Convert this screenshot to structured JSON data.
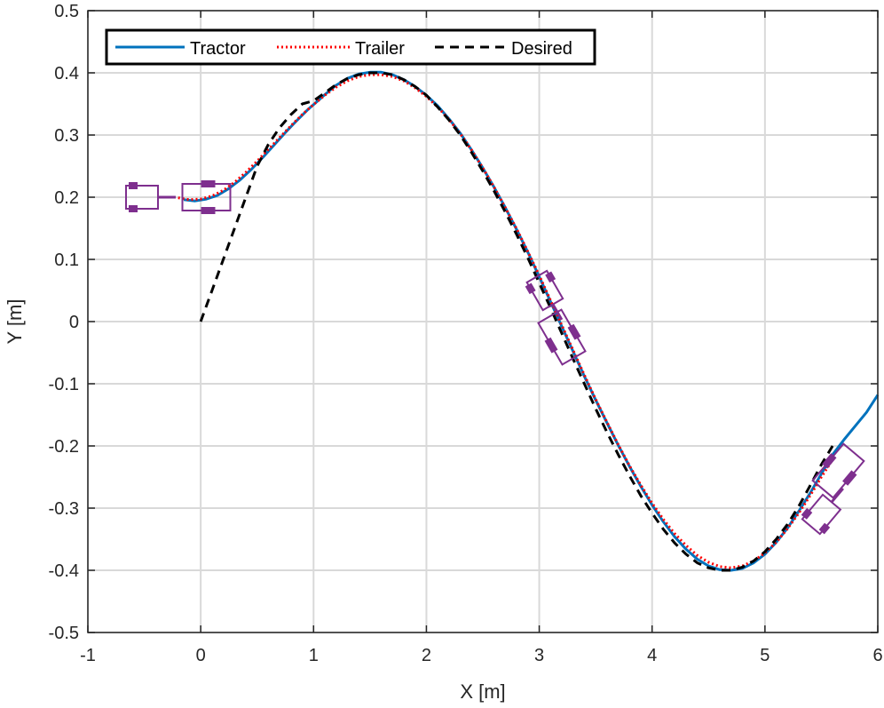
{
  "chart_data": {
    "type": "line",
    "title": "",
    "xlabel": "X [m]",
    "ylabel": "Y [m]",
    "xlim": [
      -1,
      6
    ],
    "ylim": [
      -0.5,
      0.5
    ],
    "xticks": [
      "-1",
      "0",
      "1",
      "2",
      "3",
      "4",
      "5",
      "6"
    ],
    "yticks": [
      "-0.5",
      "-0.4",
      "-0.3",
      "-0.2",
      "-0.1",
      "0",
      "0.1",
      "0.2",
      "0.3",
      "0.4",
      "0.5"
    ],
    "grid": true,
    "legend_position": "top-left",
    "colors": {
      "tractor": "#0072BD",
      "trailer": "#FF0000",
      "desired": "#000000",
      "vehicle": "#7E2F8E",
      "grid": "#d9d9d9"
    },
    "series": [
      {
        "name": "Tractor",
        "style": "solid",
        "points": [
          [
            -0.15,
            0.196
          ],
          [
            -0.05,
            0.194
          ],
          [
            0.05,
            0.197
          ],
          [
            0.15,
            0.203
          ],
          [
            0.25,
            0.214
          ],
          [
            0.35,
            0.228
          ],
          [
            0.45,
            0.245
          ],
          [
            0.55,
            0.264
          ],
          [
            0.65,
            0.284
          ],
          [
            0.75,
            0.304
          ],
          [
            0.85,
            0.323
          ],
          [
            0.95,
            0.341
          ],
          [
            1.0,
            0.349
          ],
          [
            1.1,
            0.365
          ],
          [
            1.2,
            0.38
          ],
          [
            1.3,
            0.391
          ],
          [
            1.4,
            0.398
          ],
          [
            1.5,
            0.401
          ],
          [
            1.6,
            0.401
          ],
          [
            1.7,
            0.397
          ],
          [
            1.8,
            0.389
          ],
          [
            1.9,
            0.378
          ],
          [
            2.0,
            0.364
          ],
          [
            2.1,
            0.347
          ],
          [
            2.2,
            0.326
          ],
          [
            2.3,
            0.303
          ],
          [
            2.4,
            0.276
          ],
          [
            2.5,
            0.247
          ],
          [
            2.6,
            0.216
          ],
          [
            2.7,
            0.183
          ],
          [
            2.8,
            0.148
          ],
          [
            2.9,
            0.111
          ],
          [
            3.0,
            0.072
          ],
          [
            3.1,
            0.032
          ],
          [
            3.2,
            -0.008
          ],
          [
            3.3,
            -0.048
          ],
          [
            3.4,
            -0.088
          ],
          [
            3.5,
            -0.126
          ],
          [
            3.6,
            -0.163
          ],
          [
            3.7,
            -0.199
          ],
          [
            3.8,
            -0.233
          ],
          [
            3.9,
            -0.265
          ],
          [
            4.0,
            -0.295
          ],
          [
            4.1,
            -0.322
          ],
          [
            4.2,
            -0.346
          ],
          [
            4.3,
            -0.366
          ],
          [
            4.4,
            -0.382
          ],
          [
            4.5,
            -0.393
          ],
          [
            4.6,
            -0.399
          ],
          [
            4.7,
            -0.4
          ],
          [
            4.8,
            -0.397
          ],
          [
            4.9,
            -0.388
          ],
          [
            5.0,
            -0.374
          ],
          [
            5.1,
            -0.355
          ],
          [
            5.2,
            -0.332
          ],
          [
            5.3,
            -0.305
          ],
          [
            5.4,
            -0.276
          ],
          [
            5.5,
            -0.245
          ],
          [
            5.6,
            -0.214
          ],
          [
            5.7,
            -0.19
          ],
          [
            5.8,
            -0.168
          ],
          [
            5.9,
            -0.146
          ],
          [
            6.0,
            -0.118
          ]
        ]
      },
      {
        "name": "Trailer",
        "style": "dotted",
        "points": [
          [
            -0.2,
            0.199
          ],
          [
            -0.1,
            0.196
          ],
          [
            0.0,
            0.197
          ],
          [
            0.1,
            0.202
          ],
          [
            0.2,
            0.211
          ],
          [
            0.3,
            0.224
          ],
          [
            0.4,
            0.24
          ],
          [
            0.5,
            0.258
          ],
          [
            0.6,
            0.277
          ],
          [
            0.7,
            0.296
          ],
          [
            0.8,
            0.315
          ],
          [
            0.9,
            0.333
          ],
          [
            1.0,
            0.349
          ],
          [
            1.1,
            0.364
          ],
          [
            1.2,
            0.377
          ],
          [
            1.3,
            0.387
          ],
          [
            1.4,
            0.394
          ],
          [
            1.5,
            0.397
          ],
          [
            1.6,
            0.397
          ],
          [
            1.7,
            0.394
          ],
          [
            1.8,
            0.387
          ],
          [
            1.9,
            0.376
          ],
          [
            2.0,
            0.362
          ],
          [
            2.1,
            0.345
          ],
          [
            2.2,
            0.325
          ],
          [
            2.3,
            0.302
          ],
          [
            2.4,
            0.276
          ],
          [
            2.5,
            0.247
          ],
          [
            2.6,
            0.216
          ],
          [
            2.7,
            0.183
          ],
          [
            2.8,
            0.149
          ],
          [
            2.9,
            0.112
          ],
          [
            3.0,
            0.074
          ],
          [
            3.1,
            0.034
          ],
          [
            3.2,
            -0.006
          ],
          [
            3.3,
            -0.046
          ],
          [
            3.4,
            -0.086
          ],
          [
            3.5,
            -0.125
          ],
          [
            3.6,
            -0.162
          ],
          [
            3.7,
            -0.198
          ],
          [
            3.8,
            -0.232
          ],
          [
            3.9,
            -0.263
          ],
          [
            4.0,
            -0.292
          ],
          [
            4.1,
            -0.318
          ],
          [
            4.2,
            -0.341
          ],
          [
            4.3,
            -0.36
          ],
          [
            4.4,
            -0.376
          ],
          [
            4.5,
            -0.387
          ],
          [
            4.6,
            -0.394
          ],
          [
            4.7,
            -0.396
          ],
          [
            4.8,
            -0.393
          ],
          [
            4.9,
            -0.385
          ],
          [
            5.0,
            -0.372
          ],
          [
            5.1,
            -0.355
          ],
          [
            5.2,
            -0.333
          ],
          [
            5.3,
            -0.308
          ],
          [
            5.4,
            -0.28
          ],
          [
            5.5,
            -0.25
          ],
          [
            5.6,
            -0.222
          ]
        ]
      },
      {
        "name": "Desired",
        "style": "dashed",
        "points": [
          [
            0.0,
            0.0
          ],
          [
            0.1,
            0.05
          ],
          [
            0.2,
            0.1
          ],
          [
            0.3,
            0.15
          ],
          [
            0.4,
            0.2
          ],
          [
            0.5,
            0.25
          ],
          [
            0.6,
            0.285
          ],
          [
            0.7,
            0.312
          ],
          [
            0.8,
            0.333
          ],
          [
            0.9,
            0.35
          ],
          [
            1.0,
            0.355
          ],
          [
            1.1,
            0.368
          ],
          [
            1.2,
            0.381
          ],
          [
            1.3,
            0.391
          ],
          [
            1.4,
            0.397
          ],
          [
            1.5,
            0.4
          ],
          [
            1.6,
            0.4
          ],
          [
            1.7,
            0.397
          ],
          [
            1.8,
            0.389
          ],
          [
            1.9,
            0.378
          ],
          [
            2.0,
            0.364
          ],
          [
            2.1,
            0.345
          ],
          [
            2.2,
            0.324
          ],
          [
            2.3,
            0.3
          ],
          [
            2.4,
            0.272
          ],
          [
            2.5,
            0.242
          ],
          [
            2.6,
            0.21
          ],
          [
            2.7,
            0.176
          ],
          [
            2.8,
            0.14
          ],
          [
            2.9,
            0.102
          ],
          [
            3.0,
            0.062
          ],
          [
            3.1,
            0.022
          ],
          [
            3.2,
            -0.019
          ],
          [
            3.3,
            -0.06
          ],
          [
            3.4,
            -0.1
          ],
          [
            3.5,
            -0.14
          ],
          [
            3.6,
            -0.178
          ],
          [
            3.7,
            -0.214
          ],
          [
            3.8,
            -0.248
          ],
          [
            3.9,
            -0.28
          ],
          [
            4.0,
            -0.308
          ],
          [
            4.1,
            -0.334
          ],
          [
            4.2,
            -0.356
          ],
          [
            4.3,
            -0.374
          ],
          [
            4.4,
            -0.388
          ],
          [
            4.5,
            -0.396
          ],
          [
            4.6,
            -0.4
          ],
          [
            4.7,
            -0.4
          ],
          [
            4.8,
            -0.395
          ],
          [
            4.9,
            -0.385
          ],
          [
            5.0,
            -0.37
          ],
          [
            5.1,
            -0.35
          ],
          [
            5.2,
            -0.326
          ],
          [
            5.3,
            -0.297
          ],
          [
            5.4,
            -0.264
          ],
          [
            5.5,
            -0.23
          ],
          [
            5.6,
            -0.2
          ]
        ]
      }
    ],
    "vehicles": [
      {
        "kind": "tractor",
        "x": 0.05,
        "y": 0.2,
        "heading_deg": 0
      },
      {
        "kind": "trailer",
        "x": -0.52,
        "y": 0.2,
        "heading_deg": 0
      },
      {
        "kind": "tractor",
        "x": 3.2,
        "y": -0.025,
        "heading_deg": -60
      },
      {
        "kind": "trailer",
        "x": 3.05,
        "y": 0.05,
        "heading_deg": -60
      },
      {
        "kind": "tractor",
        "x": 5.65,
        "y": -0.24,
        "heading_deg": 50
      },
      {
        "kind": "trailer",
        "x": 5.5,
        "y": -0.31,
        "heading_deg": 50
      }
    ]
  }
}
